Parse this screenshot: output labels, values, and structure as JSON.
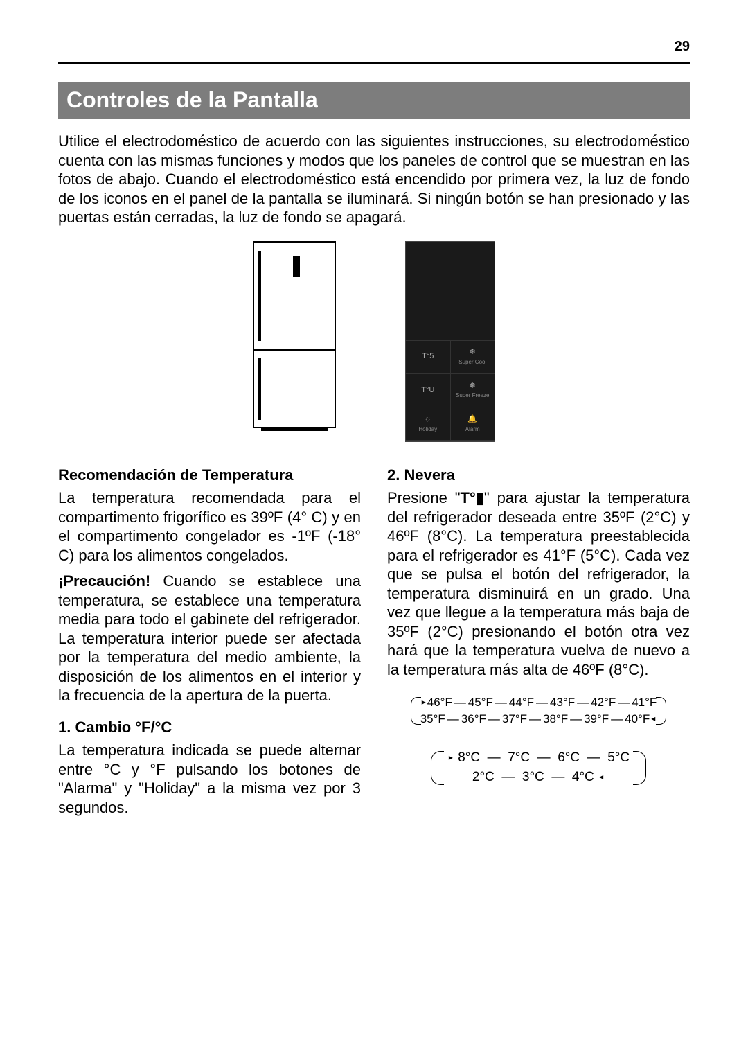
{
  "page_number": "29",
  "section_title": "Controles de la Pantalla",
  "intro": "Utilice el electrodoméstico de acuerdo con las siguientes instrucciones, su electrodoméstico cuenta con las mismas funciones y modos que los paneles de control que se muestran en las fotos de abajo. Cuando el electrodoméstico está encendido por primera vez, la luz de fondo de los iconos en el panel de la pantalla se iluminará. Si ningún botón se han presionado y las puertas están cerradas, la luz de fondo se apagará.",
  "panel_buttons": {
    "r1c1": "T°5",
    "r1c2_glyph": "❄",
    "r1c2_label": "Super Cool",
    "r2c1": "T°U",
    "r2c2_glyph": "❅",
    "r2c2_label": "Super Freeze",
    "r3c1_glyph": "☼",
    "r3c1_label": "Holiday",
    "r3c2_glyph": "🔔",
    "r3c2_label": "Alarm"
  },
  "left_col": {
    "h_recom": "Recomendación de Temperatura",
    "p_recom": "La temperatura recomendada para el compartimento frigorífico es 39ºF (4° C) y en el compartimento congelador es -1ºF (-18° C) para los alimentos congelados.",
    "caution_label": "¡Precaución!",
    "p_caution_rest": " Cuando se establece una temperatura, se establece una temperatura media para todo el gabinete del refrigerador. La temperatura interior puede ser afectada por la temperatura del medio ambiente, la disposición de los alimentos en el interior y la frecuencia de la apertura de la puerta.",
    "h_cambio": "1.  Cambio °F/°C",
    "p_cambio": "La temperatura indicada se puede alternar entre °C y °F pulsando los botones de \"Alarma\" y \"Holiday\" a la misma vez por 3 segundos."
  },
  "right_col": {
    "h_nevera": "2. Nevera",
    "p_nevera_1": "Presione \"",
    "btn_symbol": "T°▮",
    "p_nevera_2": "\" para ajustar la temperatura del refrigerador deseada entre 35ºF (2°C) y 46ºF (8°C). La temperatura preestablecida para el refrigerador es 41°F (5°C). Cada vez que se pulsa el botón del refrigerador, la temperatura disminuirá en un grado. Una vez que llegue a la temperatura más baja de 35ºF (2°C) presionando el botón otra vez hará que la temperatura vuelva de nuevo a la temperatura más alta de 46ºF (8°C)."
  },
  "loop_f": {
    "row1": [
      "46°F",
      "45°F",
      "44°F",
      "43°F",
      "42°F",
      "41°F"
    ],
    "row2": [
      "35°F",
      "36°F",
      "37°F",
      "38°F",
      "39°F",
      "40°F"
    ]
  },
  "loop_c": {
    "row1": [
      "8°C",
      "7°C",
      "6°C",
      "5°C"
    ],
    "row2": [
      "2°C",
      "3°C",
      "4°C"
    ]
  },
  "colors": {
    "header_bg": "#7d7d7d",
    "header_fg": "#ffffff",
    "text": "#000000",
    "panel_bg": "#1a1a1a"
  }
}
